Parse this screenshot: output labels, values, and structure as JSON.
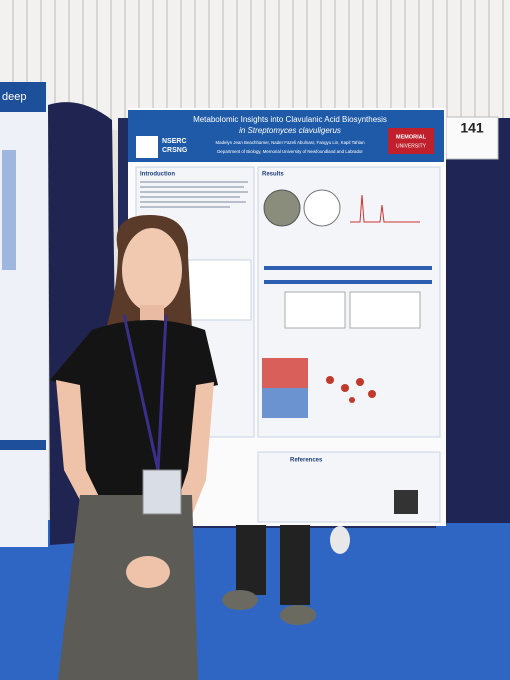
{
  "board_number": "141",
  "left_poster": {
    "title": "deep"
  },
  "poster": {
    "title_line1": "Metabolomic Insights into Clavulanic Acid Biosynthesis",
    "title_line2": "in Streptomyces clavuligerus",
    "authors": "Madelyn Jean Beachhamer, Nader Fazeli Abulnasr, Fangyu Lin, Kapil Tahlan",
    "affiliation": "Department of Biology, Memorial University of Newfoundland and Labrador",
    "logo_left": [
      "NSERC",
      "CRSNG"
    ],
    "logo_right": [
      "MEMORIAL",
      "UNIVERSITY"
    ],
    "sections": {
      "introduction": "Introduction",
      "results": "Results",
      "references": "References"
    }
  }
}
